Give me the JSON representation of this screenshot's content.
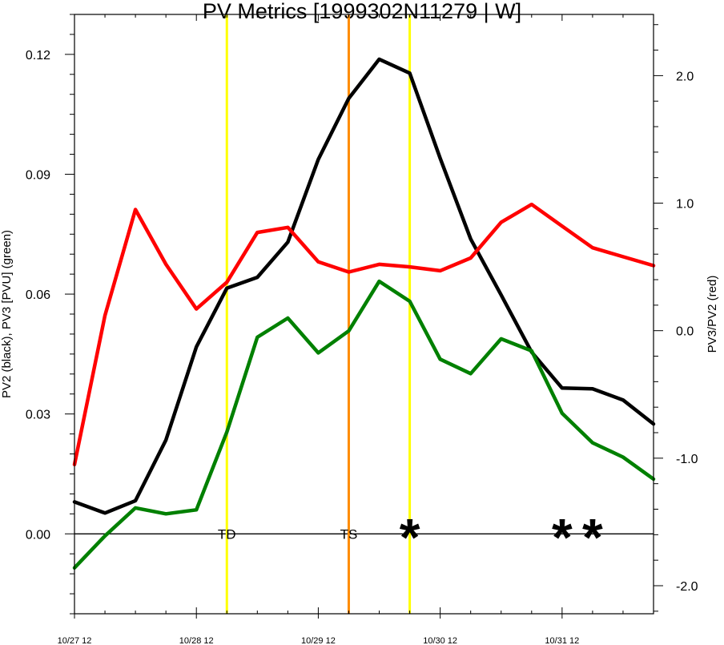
{
  "chart_data": {
    "type": "line",
    "title": "PV Metrics [1999302N11279 | W]",
    "ylabel": "PV2 (black), PV3 [PVU] (green)",
    "y2label": "PV3/PV2 (red)",
    "x": [
      0,
      0.25,
      0.5,
      0.75,
      1.0,
      1.25,
      1.5,
      1.75,
      2.0,
      2.25,
      2.5,
      2.75,
      3.0,
      3.25,
      3.5,
      3.75,
      4.0,
      4.25,
      4.5,
      4.75
    ],
    "xlim": [
      0,
      4.75
    ],
    "xticks": [
      {
        "value": 0,
        "label": "10/27 12"
      },
      {
        "value": 1,
        "label": "10/28 12"
      },
      {
        "value": 2,
        "label": "10/29 12"
      },
      {
        "value": 3,
        "label": "10/30 12"
      },
      {
        "value": 4,
        "label": "10/31 12"
      }
    ],
    "ylim": [
      -0.02,
      0.13
    ],
    "yticks": [
      {
        "value": 0.0,
        "label": "0.00"
      },
      {
        "value": 0.03,
        "label": "0.03"
      },
      {
        "value": 0.06,
        "label": "0.06"
      },
      {
        "value": 0.09,
        "label": "0.09"
      },
      {
        "value": 0.12,
        "label": "0.12"
      }
    ],
    "y2lim": [
      -2.22,
      2.48
    ],
    "y2ticks": [
      {
        "value": -2.0,
        "label": "-2.0"
      },
      {
        "value": -1.0,
        "label": "-1.0"
      },
      {
        "value": 0.0,
        "label": "0.0"
      },
      {
        "value": 1.0,
        "label": "1.0"
      },
      {
        "value": 2.0,
        "label": "2.0"
      }
    ],
    "series": [
      {
        "color": "#000000",
        "axis": "left",
        "values": [
          0.008,
          0.0052,
          0.0083,
          0.0235,
          0.0468,
          0.0615,
          0.0642,
          0.073,
          0.0937,
          0.109,
          0.1188,
          0.1153,
          0.094,
          0.0738,
          0.0598,
          0.0455,
          0.0365,
          0.0363,
          0.0335,
          0.0275
        ]
      },
      {
        "color": "#008000",
        "axis": "left",
        "values": [
          -0.0085,
          -0.0005,
          0.0065,
          0.005,
          0.006,
          0.0255,
          0.0492,
          0.054,
          0.0453,
          0.0508,
          0.0632,
          0.0582,
          0.0437,
          0.0401,
          0.0488,
          0.0458,
          0.0302,
          0.0228,
          0.0192,
          0.0137
        ]
      },
      {
        "color": "#ff0000",
        "axis": "right",
        "values": [
          -1.05,
          0.12,
          0.95,
          0.52,
          0.17,
          0.38,
          0.77,
          0.81,
          0.54,
          0.46,
          0.52,
          0.5,
          0.47,
          0.57,
          0.85,
          0.99,
          0.82,
          0.65,
          0.58,
          0.51
        ]
      }
    ],
    "vlines": [
      {
        "x": 1.25,
        "color": "#ffff00",
        "label": "TD"
      },
      {
        "x": 2.25,
        "color": "#ff8c00",
        "label": "TS"
      },
      {
        "x": 2.75,
        "color": "#ffff00",
        "label": ""
      }
    ],
    "markers": [
      {
        "x": 2.75,
        "y": 0.0,
        "symbol": "*"
      },
      {
        "x": 4.0,
        "y": 0.0,
        "symbol": "*"
      },
      {
        "x": 4.25,
        "y": 0.0,
        "symbol": "*"
      }
    ],
    "zero_line": true,
    "grid": false
  }
}
